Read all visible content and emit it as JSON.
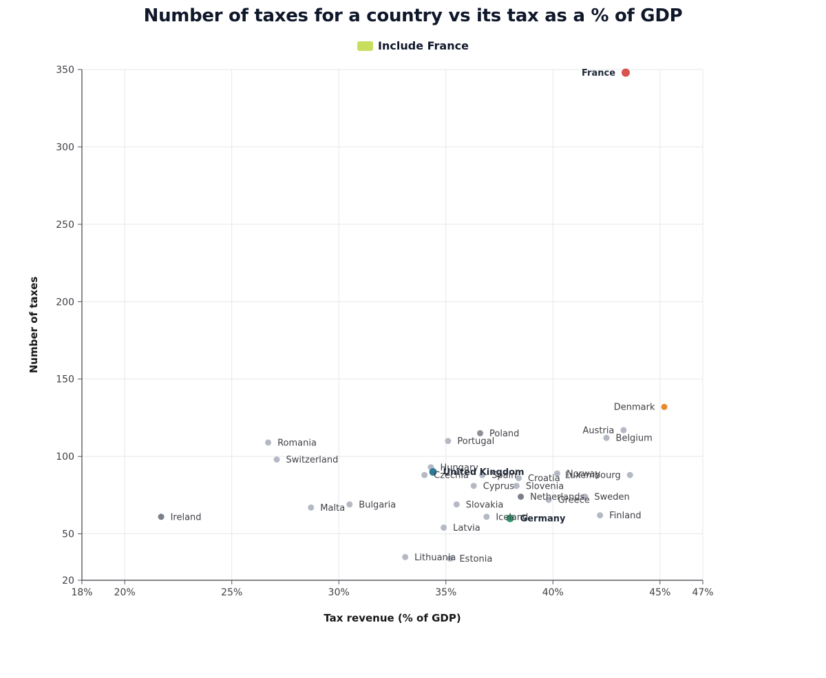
{
  "chart_data": {
    "type": "scatter",
    "title": "Number of taxes for a country vs its tax as a % of GDP",
    "legend": [
      {
        "label": "Include France",
        "color": "#c7de5e"
      }
    ],
    "xlabel": "Tax revenue (% of GDP)",
    "ylabel": "Number of taxes",
    "xlim": [
      18,
      47
    ],
    "ylim": [
      20,
      350
    ],
    "x_ticks": [
      18,
      20,
      25,
      30,
      35,
      40,
      45,
      47
    ],
    "x_tick_labels": [
      "18%",
      "20%",
      "25%",
      "30%",
      "35%",
      "40%",
      "45%",
      "47%"
    ],
    "y_ticks": [
      20,
      50,
      100,
      150,
      200,
      250,
      300,
      350
    ],
    "grid": true,
    "points": [
      {
        "name": "France",
        "x": 43.4,
        "y": 348,
        "color": "#d9534f",
        "r": 6,
        "bold": true,
        "label_side": "left"
      },
      {
        "name": "Denmark",
        "x": 45.2,
        "y": 132,
        "color": "#e8892b",
        "r": 4.5,
        "label_side": "left"
      },
      {
        "name": "Austria",
        "x": 43.3,
        "y": 117,
        "color": "#b4b9c4",
        "r": 4.5,
        "label_side": "left"
      },
      {
        "name": "Belgium",
        "x": 42.5,
        "y": 112,
        "color": "#b4b9c4",
        "r": 4.5,
        "label_side": "right"
      },
      {
        "name": "Poland",
        "x": 36.6,
        "y": 115,
        "color": "#8a8f98",
        "r": 4.5,
        "label_side": "right"
      },
      {
        "name": "Portugal",
        "x": 35.1,
        "y": 110,
        "color": "#b4b9c4",
        "r": 4.5,
        "label_side": "right"
      },
      {
        "name": "Romania",
        "x": 26.7,
        "y": 109,
        "color": "#b4b9c4",
        "r": 4.5,
        "label_side": "right"
      },
      {
        "name": "Switzerland",
        "x": 27.1,
        "y": 98,
        "color": "#b4b9c4",
        "r": 4.5,
        "label_side": "right"
      },
      {
        "name": "Hungary",
        "x": 34.3,
        "y": 93,
        "color": "#b4b9c4",
        "r": 4.5,
        "label_side": "right"
      },
      {
        "name": "United Kingdom",
        "x": 34.4,
        "y": 90,
        "color": "#2e7a96",
        "r": 5.5,
        "bold": true,
        "label_side": "right"
      },
      {
        "name": "Czechia",
        "x": 34.0,
        "y": 88,
        "color": "#b4b9c4",
        "r": 4.5,
        "label_side": "right"
      },
      {
        "name": "Spain",
        "x": 36.7,
        "y": 88,
        "color": "#b4b9c4",
        "r": 4.5,
        "label_side": "right"
      },
      {
        "name": "Croatia",
        "x": 38.4,
        "y": 86,
        "color": "#b4b9c4",
        "r": 4.5,
        "label_side": "right"
      },
      {
        "name": "Norway",
        "x": 40.2,
        "y": 89,
        "color": "#b4b9c4",
        "r": 4.5,
        "label_side": "right"
      },
      {
        "name": "Luxembourg",
        "x": 43.6,
        "y": 88,
        "color": "#b4b9c4",
        "r": 4.5,
        "label_side": "left"
      },
      {
        "name": "Cyprus",
        "x": 36.3,
        "y": 81,
        "color": "#b4b9c4",
        "r": 4.5,
        "label_side": "right"
      },
      {
        "name": "Slovenia",
        "x": 38.3,
        "y": 81,
        "color": "#b4b9c4",
        "r": 4.5,
        "label_side": "right"
      },
      {
        "name": "Netherlands",
        "x": 38.5,
        "y": 74,
        "color": "#7a7f89",
        "r": 4.5,
        "label_side": "right"
      },
      {
        "name": "Greece",
        "x": 39.8,
        "y": 72,
        "color": "#b4b9c4",
        "r": 4.5,
        "label_side": "right"
      },
      {
        "name": "Sweden",
        "x": 41.5,
        "y": 74,
        "color": "#b4b9c4",
        "r": 4.5,
        "label_side": "right"
      },
      {
        "name": "Ireland",
        "x": 21.7,
        "y": 61,
        "color": "#7a7f89",
        "r": 4.5,
        "label_side": "right"
      },
      {
        "name": "Malta",
        "x": 28.7,
        "y": 67,
        "color": "#b4b9c4",
        "r": 4.5,
        "label_side": "right"
      },
      {
        "name": "Bulgaria",
        "x": 30.5,
        "y": 69,
        "color": "#b4b9c4",
        "r": 4.5,
        "label_side": "right"
      },
      {
        "name": "Slovakia",
        "x": 35.5,
        "y": 69,
        "color": "#b4b9c4",
        "r": 4.5,
        "label_side": "right"
      },
      {
        "name": "Iceland",
        "x": 36.9,
        "y": 61,
        "color": "#b4b9c4",
        "r": 4.5,
        "label_side": "right"
      },
      {
        "name": "Germany",
        "x": 38.0,
        "y": 60,
        "color": "#2a9a6b",
        "r": 5.5,
        "bold": true,
        "label_side": "right"
      },
      {
        "name": "Finland",
        "x": 42.2,
        "y": 62,
        "color": "#b4b9c4",
        "r": 4.5,
        "label_side": "right"
      },
      {
        "name": "Latvia",
        "x": 34.9,
        "y": 54,
        "color": "#b4b9c4",
        "r": 4.5,
        "label_side": "right"
      },
      {
        "name": "Lithuania",
        "x": 33.1,
        "y": 35,
        "color": "#b4b9c4",
        "r": 4.5,
        "label_side": "right"
      },
      {
        "name": "Estonia",
        "x": 35.2,
        "y": 34,
        "color": "#b4b9c4",
        "r": 4.5,
        "label_side": "right"
      }
    ]
  }
}
